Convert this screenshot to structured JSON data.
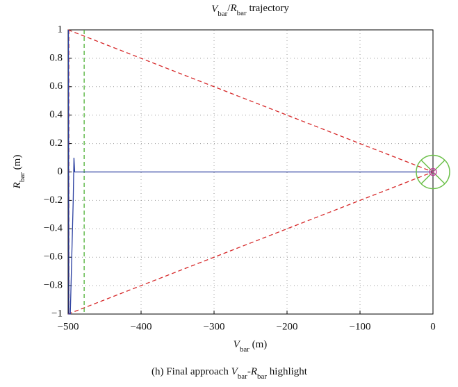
{
  "chart_data": {
    "type": "line",
    "title": [
      "V",
      "bar",
      "/",
      "R",
      "bar",
      " trajectory"
    ],
    "xlabel": [
      "V",
      "bar",
      " (m)"
    ],
    "ylabel": [
      "R",
      "bar",
      " (m)"
    ],
    "caption": [
      "(h)  Final approach ",
      "V",
      "bar",
      "-",
      "R",
      "bar",
      " highlight"
    ],
    "xlim": [
      -500,
      0
    ],
    "ylim": [
      -1,
      1
    ],
    "xticks": [
      {
        "value": -500,
        "label": "−500"
      },
      {
        "value": -400,
        "label": "−400"
      },
      {
        "value": -300,
        "label": "−300"
      },
      {
        "value": -200,
        "label": "−200"
      },
      {
        "value": -100,
        "label": "−100"
      },
      0
    ],
    "yticks": [
      {
        "value": -1,
        "label": "−1"
      },
      {
        "value": -0.8,
        "label": "−0.8"
      },
      {
        "value": -0.6,
        "label": "−0.6"
      },
      {
        "value": -0.4,
        "label": "−0.4"
      },
      {
        "value": -0.2,
        "label": "−0.2"
      },
      0,
      0.2,
      0.4,
      0.6,
      0.8,
      1
    ],
    "grid": true,
    "series": [
      {
        "color": "#d62728",
        "dashed": true,
        "x": [
          -500,
          0
        ],
        "values": [
          1,
          0
        ]
      },
      {
        "color": "#d62728",
        "dashed": true,
        "x": [
          -500,
          0
        ],
        "values": [
          -1,
          0
        ]
      },
      {
        "color": "#d62728",
        "dashed": true,
        "x": [
          -499,
          -499
        ],
        "values": [
          1,
          -1
        ]
      },
      {
        "color": "#4caf32",
        "dashed": true,
        "x": [
          -478,
          -478
        ],
        "values": [
          1,
          -1
        ]
      },
      {
        "color": "#2a3fa0",
        "dashed": false,
        "x": [
          -499.5,
          -499,
          -497,
          -493,
          -492,
          -491,
          -400,
          -300,
          -200,
          -100,
          0
        ],
        "values": [
          1,
          -1,
          -1,
          -0.2,
          0.1,
          0,
          0,
          0,
          0,
          0,
          0
        ]
      }
    ]
  }
}
